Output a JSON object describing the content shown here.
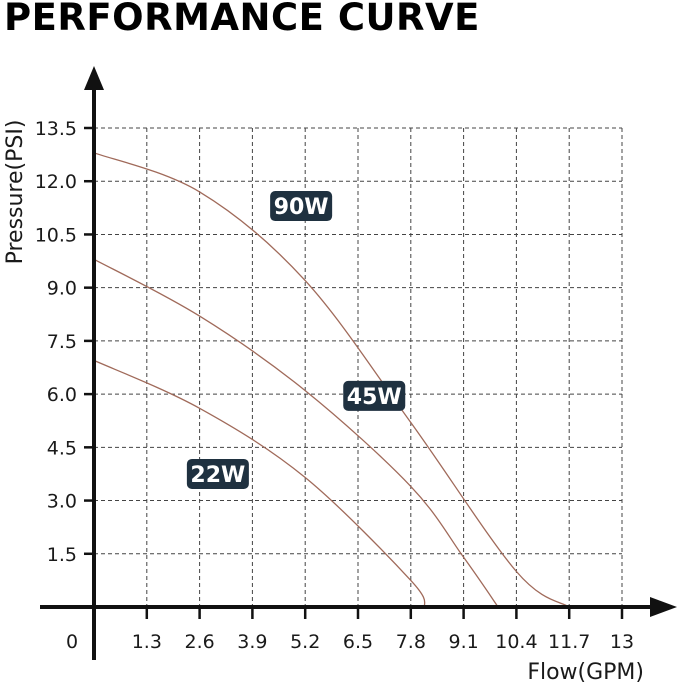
{
  "chart_data": {
    "type": "line",
    "title": "PERFORMANCE CURVE",
    "xlabel": "Flow(GPM)",
    "ylabel": "Pressure(PSI)",
    "xlim": [
      0,
      13
    ],
    "ylim": [
      0,
      13.5
    ],
    "x_ticks": [
      "0",
      "1.3",
      "2.6",
      "3.9",
      "5.2",
      "6.5",
      "7.8",
      "9.1",
      "10.4",
      "11.7",
      "13"
    ],
    "y_ticks": [
      "1.5",
      "3.0",
      "4.5",
      "6.0",
      "7.5",
      "9.0",
      "10.5",
      "12.0",
      "13.5"
    ],
    "grid": true,
    "colors": {
      "curve": "#a06a5a",
      "axis": "#111111",
      "grid": "#444444",
      "label_bg": "#1f3140"
    },
    "series": [
      {
        "name": "90W",
        "x": [
          0,
          2.6,
          5.2,
          7.8,
          10.4,
          11.7
        ],
        "y": [
          12.8,
          11.7,
          9.2,
          5.2,
          1.0,
          0
        ]
      },
      {
        "name": "45W",
        "x": [
          0,
          2.6,
          5.2,
          7.8,
          9.1,
          9.95
        ],
        "y": [
          9.8,
          8.2,
          6.1,
          3.4,
          1.4,
          0
        ]
      },
      {
        "name": "22W",
        "x": [
          0,
          2.6,
          5.2,
          7.8,
          8.15
        ],
        "y": [
          6.95,
          5.6,
          3.65,
          0.75,
          0
        ]
      }
    ],
    "series_labels": [
      {
        "text": "90W",
        "x": 5.1,
        "y": 11.3
      },
      {
        "text": "45W",
        "x": 6.9,
        "y": 5.95
      },
      {
        "text": "22W",
        "x": 3.05,
        "y": 3.75
      }
    ]
  }
}
